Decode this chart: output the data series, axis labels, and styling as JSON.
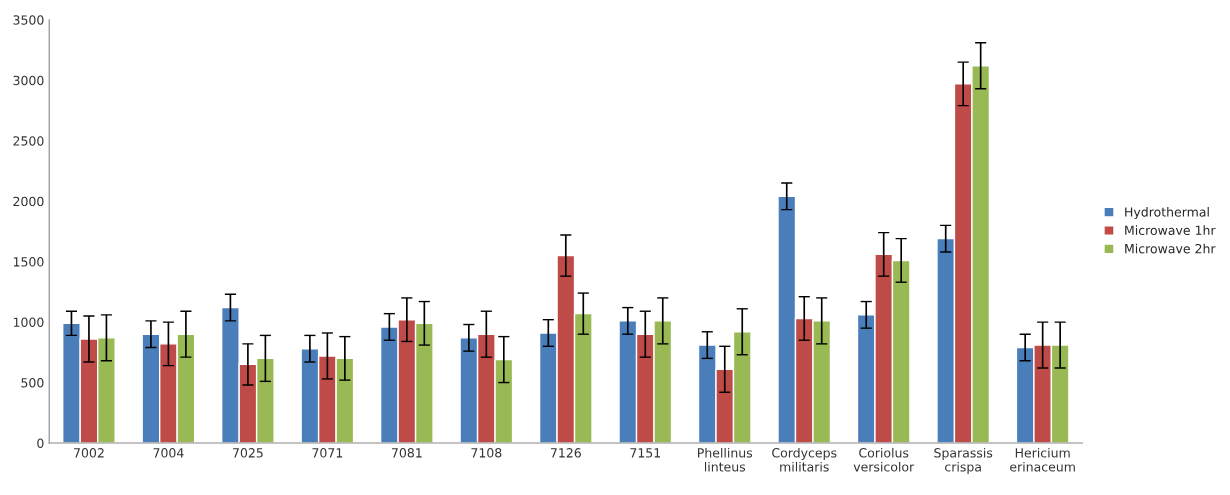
{
  "chart_data": {
    "type": "bar",
    "categories": [
      "7002",
      "7004",
      "7025",
      "7071",
      "7081",
      "7108",
      "7126",
      "7151",
      "Phellinus\nlinteus",
      "Cordyceps\nmilitaris",
      "Coriolus\nversicolor",
      "Sparassis\ncrispa",
      "Hericium\nerinaceum"
    ],
    "series": [
      {
        "name": "Hydrothermal",
        "color": "#4a7ebb",
        "values": [
          990,
          900,
          1120,
          780,
          960,
          870,
          910,
          1010,
          810,
          2040,
          1060,
          1690,
          790
        ],
        "errors": [
          100,
          110,
          110,
          110,
          110,
          110,
          110,
          110,
          110,
          110,
          110,
          110,
          110
        ]
      },
      {
        "name": "Microwave 1hr",
        "color": "#be4b48",
        "values": [
          860,
          820,
          650,
          720,
          1020,
          900,
          1550,
          900,
          610,
          1030,
          1560,
          2970,
          810
        ],
        "errors": [
          190,
          180,
          170,
          190,
          180,
          190,
          170,
          190,
          190,
          180,
          180,
          180,
          190
        ]
      },
      {
        "name": "Microwave 2hr",
        "color": "#98b954",
        "values": [
          870,
          900,
          700,
          700,
          990,
          690,
          1070,
          1010,
          920,
          1010,
          1510,
          3120,
          810
        ],
        "errors": [
          190,
          190,
          190,
          180,
          180,
          190,
          170,
          190,
          190,
          190,
          180,
          190,
          190
        ]
      }
    ],
    "ylim": [
      0,
      3500
    ],
    "yticks": [
      0,
      500,
      1000,
      1500,
      2000,
      2500,
      3000,
      3500
    ],
    "grid": false,
    "legend": "right"
  }
}
